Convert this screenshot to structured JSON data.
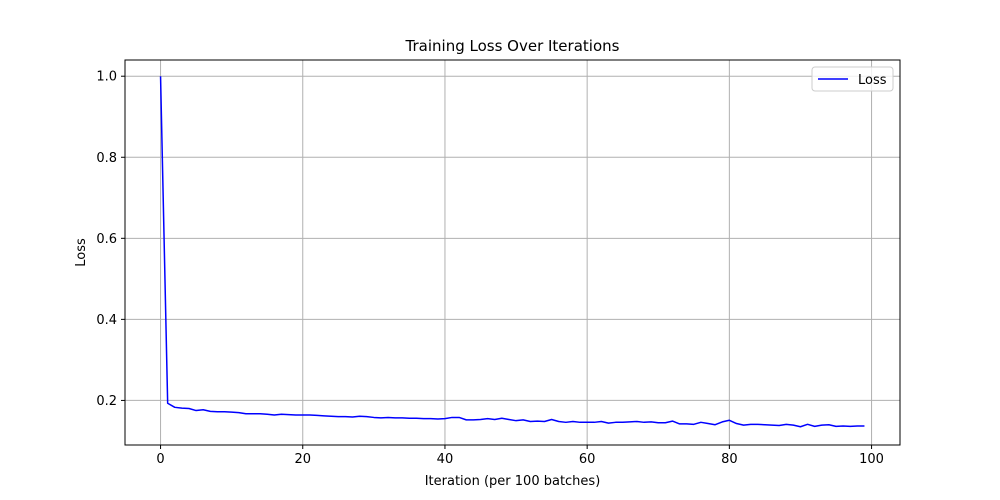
{
  "chart_data": {
    "type": "line",
    "title": "Training Loss Over Iterations",
    "xlabel": "Iteration (per 100 batches)",
    "ylabel": "Loss",
    "xlim": [
      -5,
      104
    ],
    "ylim": [
      0.09,
      1.04
    ],
    "xticks": [
      0,
      20,
      40,
      60,
      80,
      100
    ],
    "yticks": [
      0.2,
      0.4,
      0.6,
      0.8,
      1.0
    ],
    "grid": true,
    "legend": {
      "position": "top-right",
      "entries": [
        "Loss"
      ]
    },
    "series": [
      {
        "name": "Loss",
        "color": "#0000ff",
        "x": [
          0,
          1,
          2,
          3,
          4,
          5,
          6,
          7,
          8,
          9,
          10,
          11,
          12,
          13,
          14,
          15,
          16,
          17,
          18,
          19,
          20,
          21,
          22,
          23,
          24,
          25,
          26,
          27,
          28,
          29,
          30,
          31,
          32,
          33,
          34,
          35,
          36,
          37,
          38,
          39,
          40,
          41,
          42,
          43,
          44,
          45,
          46,
          47,
          48,
          49,
          50,
          51,
          52,
          53,
          54,
          55,
          56,
          57,
          58,
          59,
          60,
          61,
          62,
          63,
          64,
          65,
          66,
          67,
          68,
          69,
          70,
          71,
          72,
          73,
          74,
          75,
          76,
          77,
          78,
          79,
          80,
          81,
          82,
          83,
          84,
          85,
          86,
          87,
          88,
          89,
          90,
          91,
          92,
          93,
          94,
          95,
          96,
          97,
          98,
          99
        ],
        "values": [
          1.0,
          0.193,
          0.183,
          0.181,
          0.18,
          0.175,
          0.177,
          0.173,
          0.172,
          0.172,
          0.171,
          0.17,
          0.167,
          0.167,
          0.167,
          0.166,
          0.164,
          0.166,
          0.165,
          0.164,
          0.164,
          0.164,
          0.163,
          0.162,
          0.161,
          0.16,
          0.16,
          0.159,
          0.161,
          0.16,
          0.158,
          0.157,
          0.158,
          0.157,
          0.157,
          0.156,
          0.156,
          0.155,
          0.155,
          0.154,
          0.155,
          0.158,
          0.158,
          0.152,
          0.152,
          0.153,
          0.155,
          0.153,
          0.156,
          0.153,
          0.15,
          0.152,
          0.148,
          0.149,
          0.148,
          0.153,
          0.148,
          0.146,
          0.148,
          0.146,
          0.146,
          0.146,
          0.148,
          0.144,
          0.146,
          0.146,
          0.147,
          0.148,
          0.146,
          0.147,
          0.145,
          0.145,
          0.149,
          0.142,
          0.142,
          0.141,
          0.146,
          0.143,
          0.14,
          0.147,
          0.151,
          0.143,
          0.139,
          0.141,
          0.141,
          0.14,
          0.139,
          0.138,
          0.141,
          0.139,
          0.135,
          0.141,
          0.136,
          0.139,
          0.14,
          0.136,
          0.137,
          0.136,
          0.137,
          0.137
        ]
      }
    ]
  }
}
